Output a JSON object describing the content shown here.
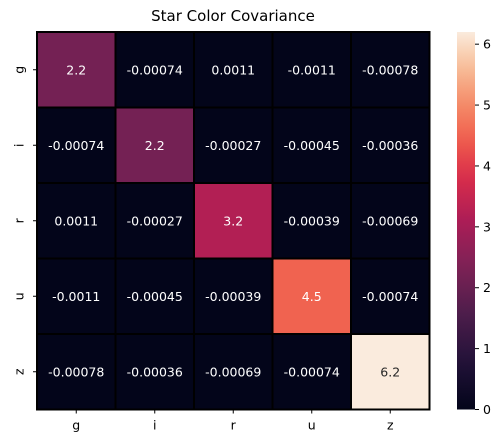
{
  "chart_data": {
    "type": "heatmap",
    "title": "Star Color Covariance",
    "xlabel": "",
    "ylabel": "",
    "x_categories": [
      "g",
      "i",
      "r",
      "u",
      "z"
    ],
    "y_categories": [
      "g",
      "i",
      "r",
      "u",
      "z"
    ],
    "values": [
      [
        2.2,
        -0.00074,
        0.0011,
        -0.0011,
        -0.00078
      ],
      [
        -0.00074,
        2.2,
        -0.00027,
        -0.00045,
        -0.00036
      ],
      [
        0.0011,
        -0.00027,
        3.2,
        -0.00039,
        -0.00069
      ],
      [
        -0.0011,
        -0.00045,
        -0.00039,
        4.5,
        -0.00074
      ],
      [
        -0.00078,
        -0.00036,
        -0.00069,
        -0.00074,
        6.2
      ]
    ],
    "annotations": [
      [
        "2.2",
        "-0.00074",
        "0.0011",
        "-0.0011",
        "-0.00078"
      ],
      [
        "-0.00074",
        "2.2",
        "-0.00027",
        "-0.00045",
        "-0.00036"
      ],
      [
        "0.0011",
        "-0.00027",
        "3.2",
        "-0.00039",
        "-0.00069"
      ],
      [
        "-0.0011",
        "-0.00045",
        "-0.00039",
        "4.5",
        "-0.00074"
      ],
      [
        "-0.00078",
        "-0.00036",
        "-0.00069",
        "-0.00074",
        "6.2"
      ]
    ],
    "colorbar": {
      "min": 0,
      "max": 6.2,
      "ticks": [
        0,
        1,
        2,
        3,
        4,
        5,
        6
      ]
    },
    "colormap": "rocket",
    "cell_border_color": "#000000",
    "legend": "none",
    "grid": false
  }
}
